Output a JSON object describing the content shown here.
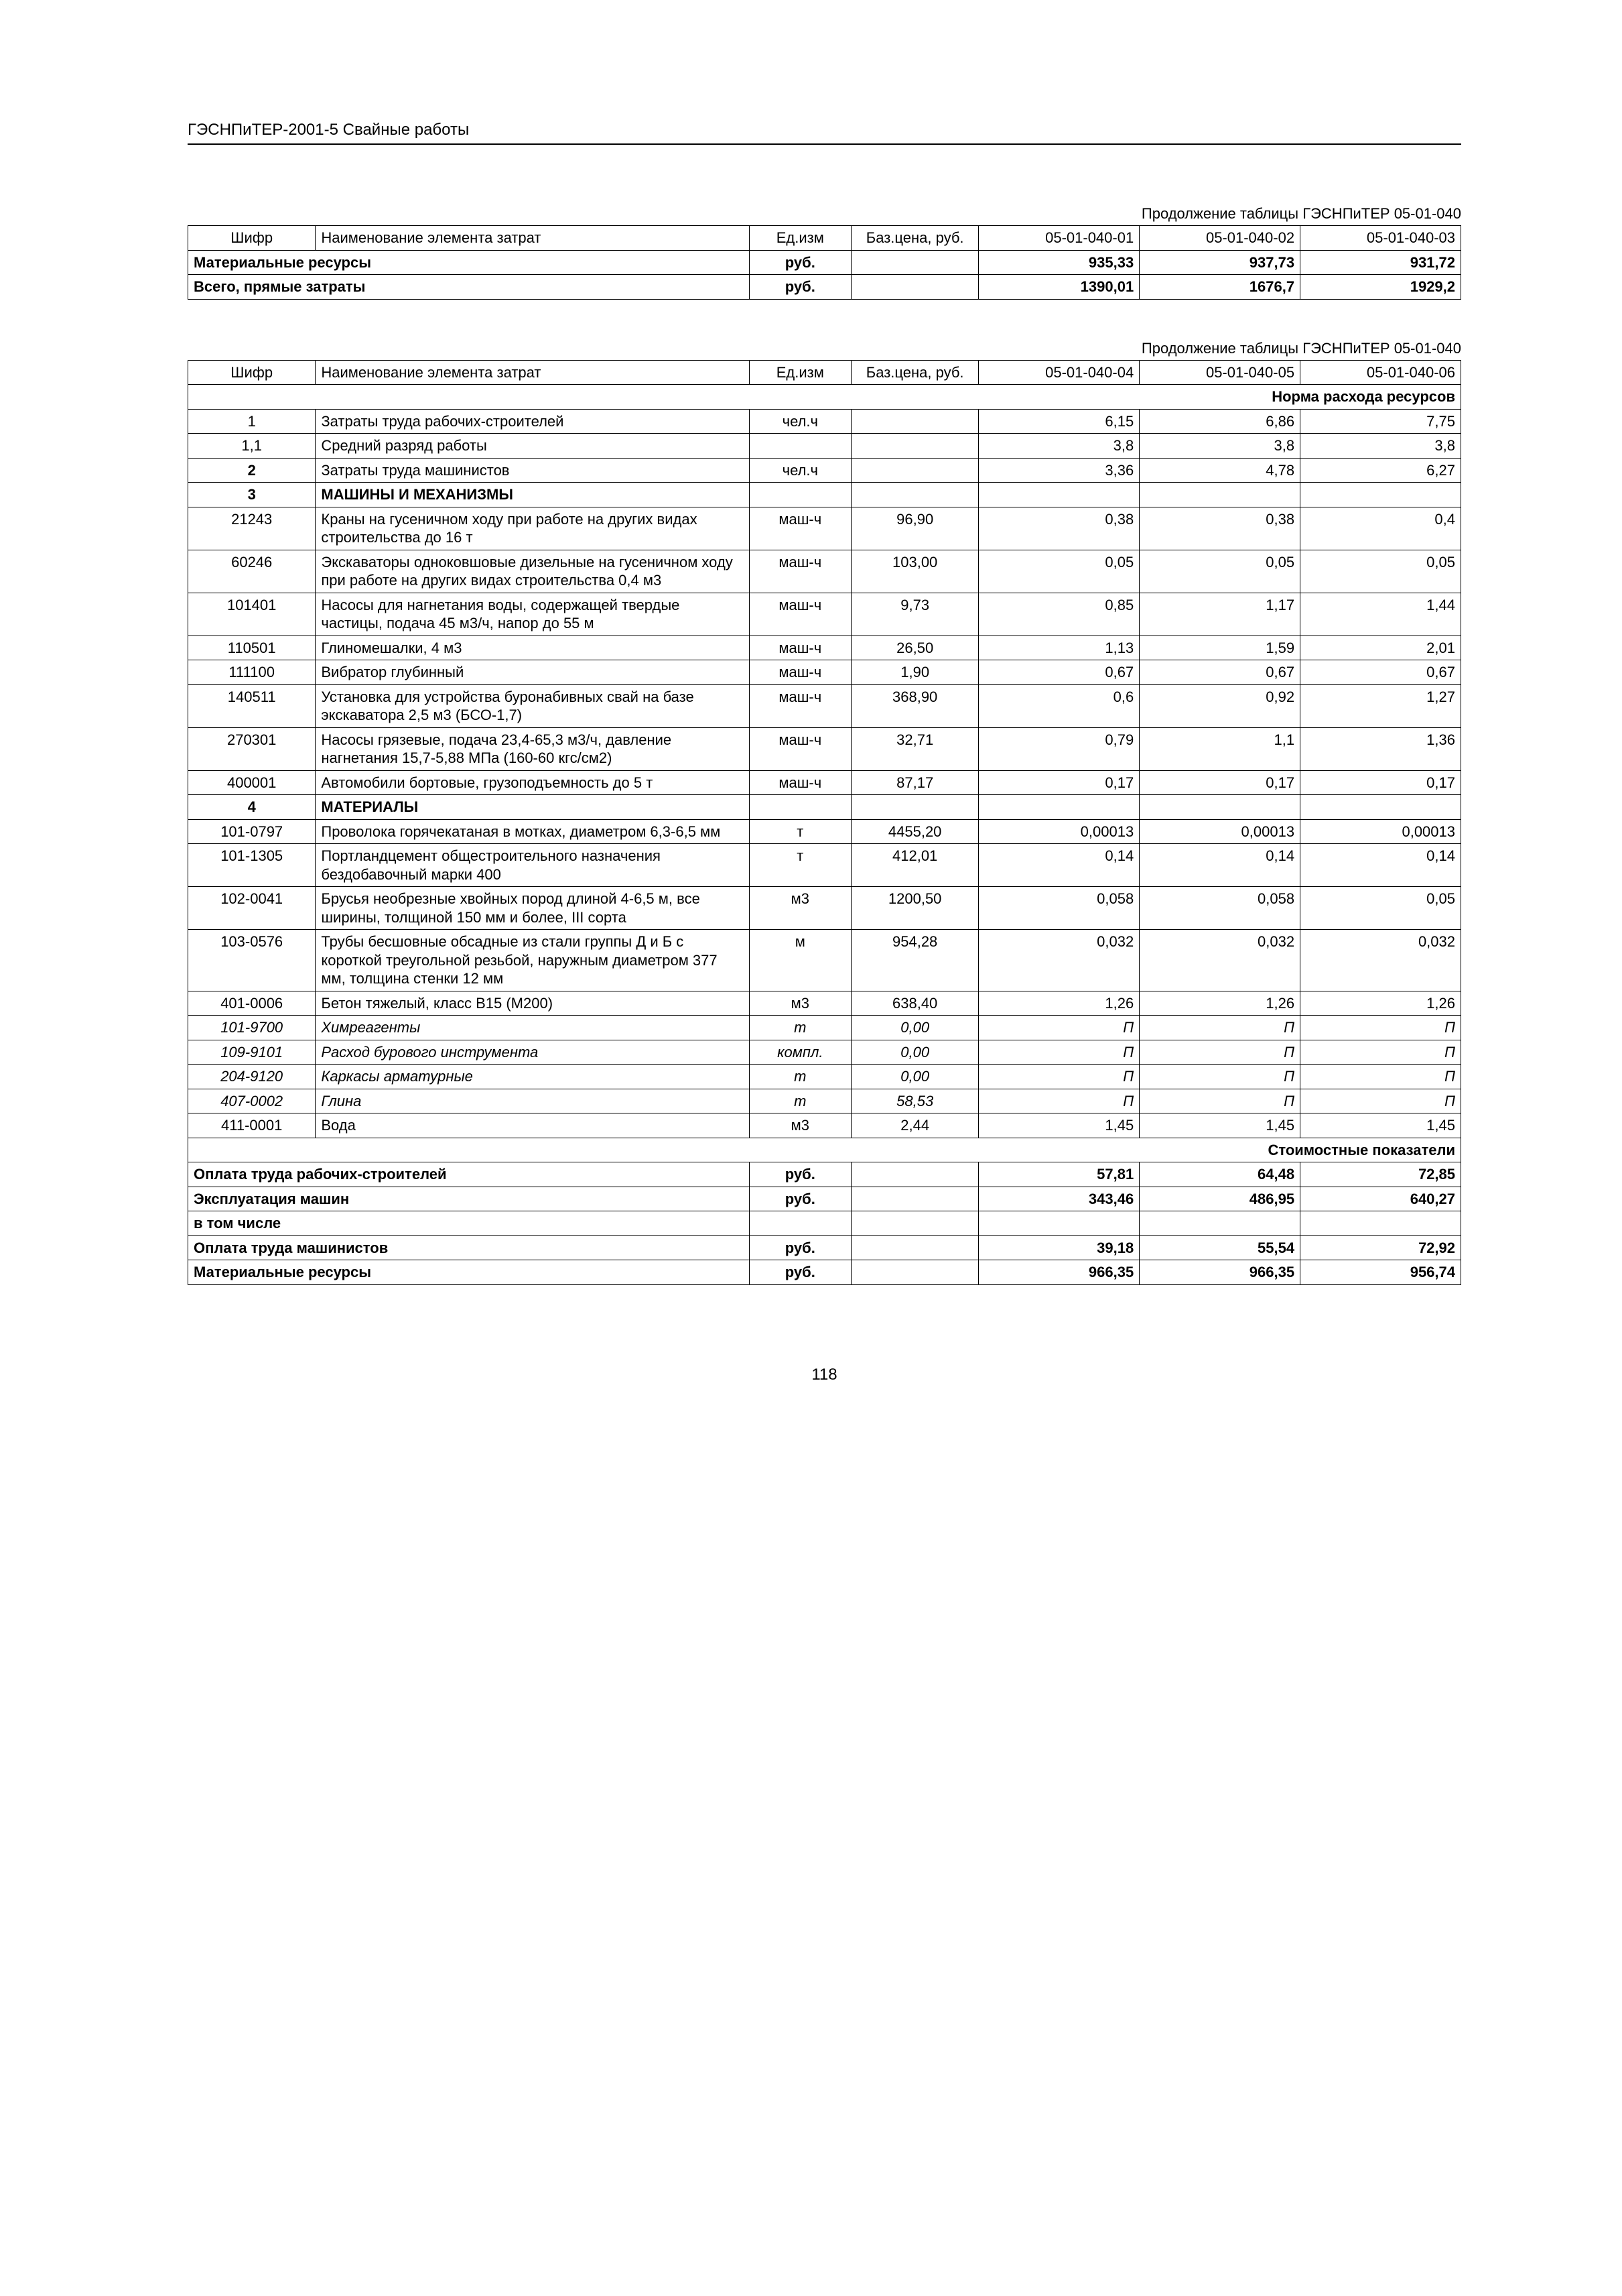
{
  "doc_header": "ГЭСНПиТЕР-2001-5 Свайные работы",
  "cont_caption": "Продолжение таблицы ГЭСНПиТЕР 05-01-040",
  "page_number": "118",
  "head": {
    "shifr": "Шифр",
    "name": "Наименование элемента затрат",
    "ed": "Ед.изм",
    "baz": "Баз.цена, руб."
  },
  "t1": {
    "cols": [
      "05-01-040-01",
      "05-01-040-02",
      "05-01-040-03"
    ],
    "rows": [
      {
        "name": "Материальные ресурсы",
        "ed": "руб.",
        "v": [
          "935,33",
          "937,73",
          "931,72"
        ],
        "bold": true
      },
      {
        "name": "Всего, прямые затраты",
        "ed": "руб.",
        "v": [
          "1390,01",
          "1676,7",
          "1929,2"
        ],
        "bold": true
      }
    ]
  },
  "t2": {
    "cols": [
      "05-01-040-04",
      "05-01-040-05",
      "05-01-040-06"
    ],
    "section_norma": "Норма расхода ресурсов",
    "section_cost": "Стоимостные показатели",
    "rows": [
      {
        "shifr": "1",
        "name": "Затраты труда рабочих-строителей",
        "ed": "чел.ч",
        "baz": "",
        "v": [
          "6,15",
          "6,86",
          "7,75"
        ]
      },
      {
        "shifr": "1,1",
        "name": "Средний разряд работы",
        "ed": "",
        "baz": "",
        "v": [
          "3,8",
          "3,8",
          "3,8"
        ]
      },
      {
        "shifr": "2",
        "name": "Затраты труда машинистов",
        "ed": "чел.ч",
        "baz": "",
        "v": [
          "3,36",
          "4,78",
          "6,27"
        ],
        "shifr_bold": true
      },
      {
        "shifr": "3",
        "name": "МАШИНЫ И МЕХАНИЗМЫ",
        "ed": "",
        "baz": "",
        "v": [
          "",
          "",
          ""
        ],
        "bold": true,
        "shifr_bold": true
      },
      {
        "shifr": "21243",
        "name": "Краны на гусеничном ходу при работе на других видах строительства до 16 т",
        "ed": "маш-ч",
        "baz": "96,90",
        "v": [
          "0,38",
          "0,38",
          "0,4"
        ]
      },
      {
        "shifr": "60246",
        "name": "Экскаваторы одноковшовые дизельные на гусеничном ходу при работе на других видах строительства 0,4 м3",
        "ed": "маш-ч",
        "baz": "103,00",
        "v": [
          "0,05",
          "0,05",
          "0,05"
        ]
      },
      {
        "shifr": "101401",
        "name": "Насосы для нагнетания воды, содержащей твердые частицы, подача 45 м3/ч, напор до 55 м",
        "ed": "маш-ч",
        "baz": "9,73",
        "v": [
          "0,85",
          "1,17",
          "1,44"
        ]
      },
      {
        "shifr": "110501",
        "name": "Глиномешалки, 4 м3",
        "ed": "маш-ч",
        "baz": "26,50",
        "v": [
          "1,13",
          "1,59",
          "2,01"
        ]
      },
      {
        "shifr": "111100",
        "name": "Вибратор глубинный",
        "ed": "маш-ч",
        "baz": "1,90",
        "v": [
          "0,67",
          "0,67",
          "0,67"
        ]
      },
      {
        "shifr": "140511",
        "name": "Установка для устройства буронабивных свай на базе экскаватора 2,5 м3 (БСО-1,7)",
        "ed": "маш-ч",
        "baz": "368,90",
        "v": [
          "0,6",
          "0,92",
          "1,27"
        ]
      },
      {
        "shifr": "270301",
        "name": "Насосы грязевые, подача 23,4-65,3 м3/ч, давление нагнетания 15,7-5,88 МПа (160-60 кгс/см2)",
        "ed": "маш-ч",
        "baz": "32,71",
        "v": [
          "0,79",
          "1,1",
          "1,36"
        ]
      },
      {
        "shifr": "400001",
        "name": "Автомобили бортовые, грузоподъемность до 5 т",
        "ed": "маш-ч",
        "baz": "87,17",
        "v": [
          "0,17",
          "0,17",
          "0,17"
        ]
      },
      {
        "shifr": "4",
        "name": "МАТЕРИАЛЫ",
        "ed": "",
        "baz": "",
        "v": [
          "",
          "",
          ""
        ],
        "bold": true,
        "shifr_bold": true
      },
      {
        "shifr": "101-0797",
        "name": "Проволока горячекатаная в мотках, диаметром 6,3-6,5 мм",
        "ed": "т",
        "baz": "4455,20",
        "v": [
          "0,00013",
          "0,00013",
          "0,00013"
        ]
      },
      {
        "shifr": "101-1305",
        "name": "Портландцемент общестроительного назначения бездобавочный марки 400",
        "ed": "т",
        "baz": "412,01",
        "v": [
          "0,14",
          "0,14",
          "0,14"
        ]
      },
      {
        "shifr": "102-0041",
        "name": "Брусья необрезные хвойных пород длиной 4-6,5 м, все ширины, толщиной 150 мм и более, III сорта",
        "ed": "м3",
        "baz": "1200,50",
        "v": [
          "0,058",
          "0,058",
          "0,05"
        ]
      },
      {
        "shifr": "103-0576",
        "name": "Трубы бесшовные обсадные из стали группы Д и Б с короткой треугольной резьбой, наружным диаметром 377 мм, толщина стенки 12 мм",
        "ed": "м",
        "baz": "954,28",
        "v": [
          "0,032",
          "0,032",
          "0,032"
        ]
      },
      {
        "shifr": "401-0006",
        "name": "Бетон тяжелый, класс В15 (М200)",
        "ed": "м3",
        "baz": "638,40",
        "v": [
          "1,26",
          "1,26",
          "1,26"
        ]
      },
      {
        "shifr": "101-9700",
        "name": "Химреагенты",
        "ed": "т",
        "baz": "0,00",
        "v": [
          "П",
          "П",
          "П"
        ],
        "italic": true
      },
      {
        "shifr": "109-9101",
        "name": "Расход бурового инструмента",
        "ed": "компл.",
        "baz": "0,00",
        "v": [
          "П",
          "П",
          "П"
        ],
        "italic": true
      },
      {
        "shifr": "204-9120",
        "name": "Каркасы арматурные",
        "ed": "т",
        "baz": "0,00",
        "v": [
          "П",
          "П",
          "П"
        ],
        "italic": true
      },
      {
        "shifr": "407-0002",
        "name": "Глина",
        "ed": "т",
        "baz": "58,53",
        "v": [
          "П",
          "П",
          "П"
        ],
        "italic": true
      },
      {
        "shifr": "411-0001",
        "name": "Вода",
        "ed": "м3",
        "baz": "2,44",
        "v": [
          "1,45",
          "1,45",
          "1,45"
        ]
      }
    ],
    "cost_rows": [
      {
        "name": "Оплата труда рабочих-строителей",
        "ed": "руб.",
        "v": [
          "57,81",
          "64,48",
          "72,85"
        ],
        "bold": true
      },
      {
        "name": "Эксплуатация машин",
        "ed": "руб.",
        "v": [
          "343,46",
          "486,95",
          "640,27"
        ],
        "bold": true
      },
      {
        "name": "в том числе",
        "ed": "",
        "v": [
          "",
          "",
          ""
        ],
        "bold": true
      },
      {
        "name": "Оплата труда машинистов",
        "ed": "руб.",
        "v": [
          "39,18",
          "55,54",
          "72,92"
        ],
        "bold": true
      },
      {
        "name": "Материальные ресурсы",
        "ed": "руб.",
        "v": [
          "966,35",
          "966,35",
          "956,74"
        ],
        "bold": true
      }
    ]
  }
}
